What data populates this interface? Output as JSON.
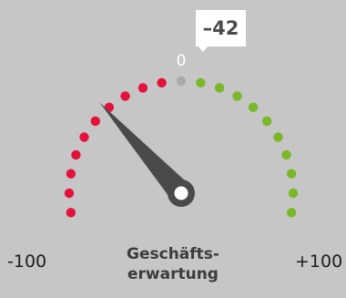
{
  "chart_data": {
    "type": "gauge",
    "value": -42,
    "value_label": "–42",
    "min": -100,
    "max": 100,
    "min_label": "-100",
    "max_label": "+100",
    "zero_label": "0",
    "title_line1": "Geschäfts-",
    "title_line2": "erwartung",
    "dot_count": 21,
    "colors": {
      "negative": "#e4123b",
      "neutral": "#aaaaaa",
      "positive": "#7ab829",
      "needle": "#4a4a4a",
      "background": "#c6c6c6",
      "value_box": "#ffffff"
    }
  }
}
